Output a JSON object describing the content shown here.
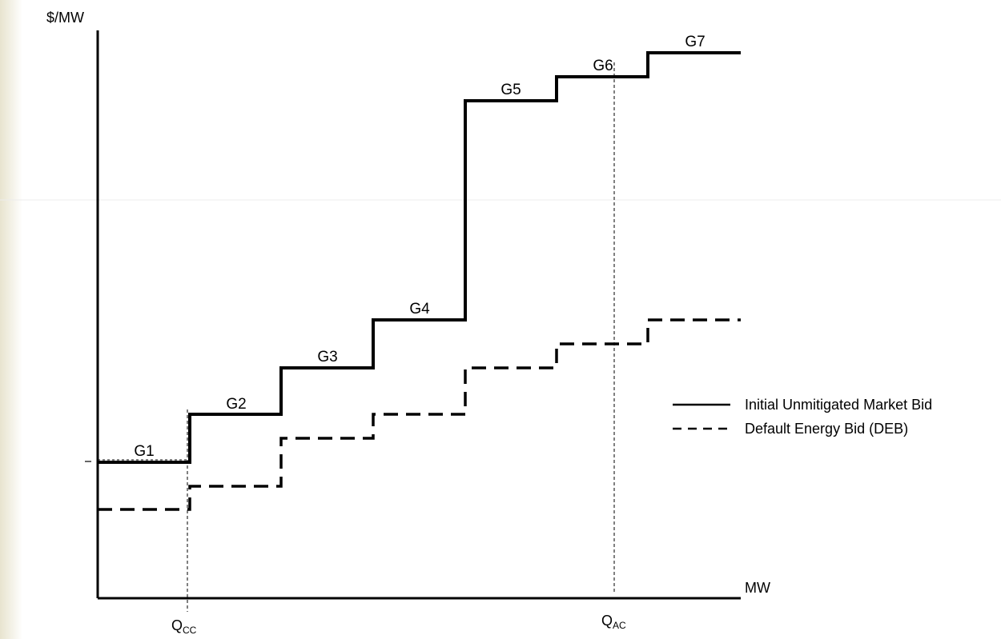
{
  "axes": {
    "y_label": "$/MW",
    "x_label": "MW"
  },
  "markers": [
    {
      "main": "Q",
      "sub": "CC"
    },
    {
      "main": "Q",
      "sub": "AC"
    }
  ],
  "segments": [
    "G1",
    "G2",
    "G3",
    "G4",
    "G5",
    "G6",
    "G7"
  ],
  "series": [
    {
      "name": "Initial Unmitigated Market Bid",
      "style": "solid",
      "color": "#000000"
    },
    {
      "name": "Default Energy Bid (DEB)",
      "style": "dashed",
      "color": "#000000"
    }
  ],
  "colors": {
    "background": "#ffffff",
    "left_band": "#e8e4cf",
    "ink": "#000000"
  }
}
